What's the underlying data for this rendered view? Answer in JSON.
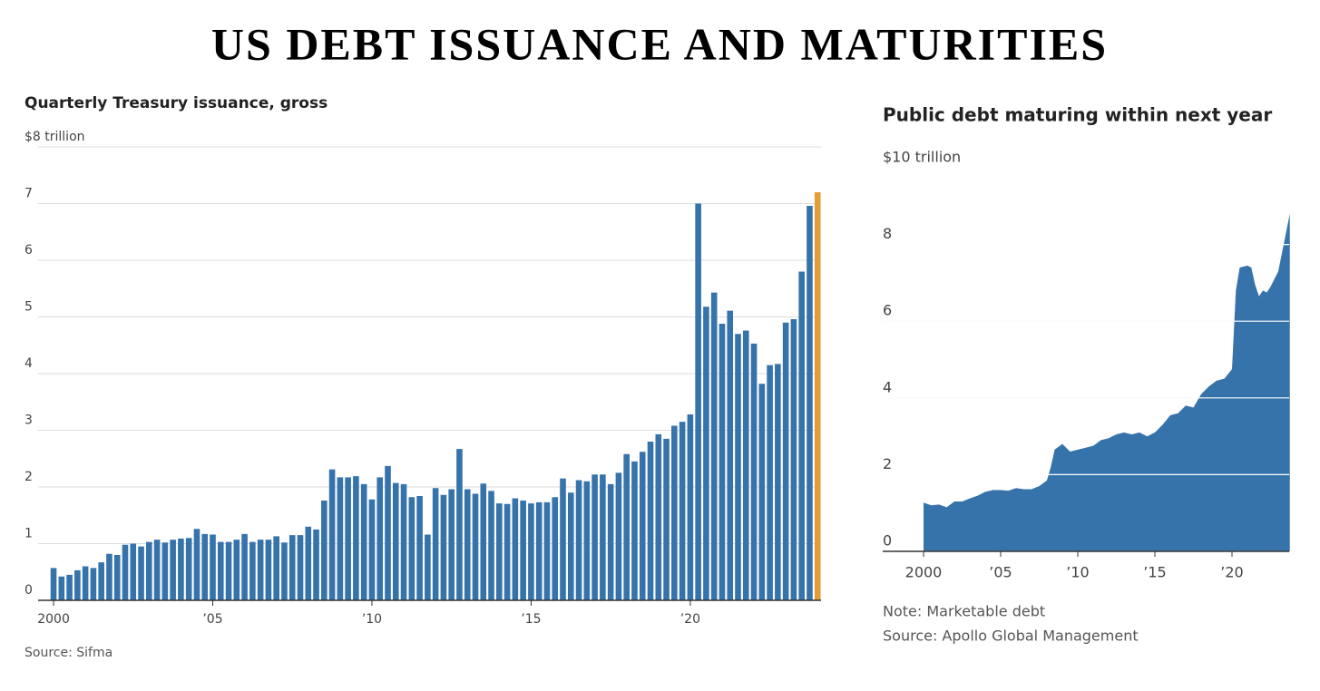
{
  "title": "US DEBT ISSUANCE AND MATURITIES",
  "chart_data": [
    {
      "type": "bar",
      "title": "Quarterly Treasury issuance, gross",
      "source": "Source: Sifma",
      "color": "#3673ab",
      "highlight_last_color": "#e49c3b",
      "x": [
        2000,
        2000.25,
        2000.5,
        2000.75,
        2001,
        2001.25,
        2001.5,
        2001.75,
        2002,
        2002.25,
        2002.5,
        2002.75,
        2003,
        2003.25,
        2003.5,
        2003.75,
        2004,
        2004.25,
        2004.5,
        2004.75,
        2005,
        2005.25,
        2005.5,
        2005.75,
        2006,
        2006.25,
        2006.5,
        2006.75,
        2007,
        2007.25,
        2007.5,
        2007.75,
        2008,
        2008.25,
        2008.5,
        2008.75,
        2009,
        2009.25,
        2009.5,
        2009.75,
        2010,
        2010.25,
        2010.5,
        2010.75,
        2011,
        2011.25,
        2011.5,
        2011.75,
        2012,
        2012.25,
        2012.5,
        2012.75,
        2013,
        2013.25,
        2013.5,
        2013.75,
        2014,
        2014.25,
        2014.5,
        2014.75,
        2015,
        2015.25,
        2015.5,
        2015.75,
        2016,
        2016.25,
        2016.5,
        2016.75,
        2017,
        2017.25,
        2017.5,
        2017.75,
        2018,
        2018.25,
        2018.5,
        2018.75,
        2019,
        2019.25,
        2019.5,
        2019.75,
        2020,
        2020.25,
        2020.5,
        2020.75,
        2021,
        2021.25,
        2021.5,
        2021.75,
        2022,
        2022.25,
        2022.5,
        2022.75,
        2023,
        2023.25,
        2023.5,
        2023.75,
        2024
      ],
      "values": [
        0.57,
        0.42,
        0.45,
        0.53,
        0.6,
        0.57,
        0.67,
        0.82,
        0.8,
        0.98,
        1.0,
        0.95,
        1.03,
        1.07,
        1.02,
        1.07,
        1.09,
        1.1,
        1.26,
        1.17,
        1.16,
        1.03,
        1.03,
        1.07,
        1.17,
        1.03,
        1.07,
        1.07,
        1.13,
        1.02,
        1.15,
        1.15,
        1.3,
        1.25,
        1.76,
        2.31,
        2.17,
        2.17,
        2.19,
        2.05,
        1.78,
        2.17,
        2.37,
        2.07,
        2.05,
        1.82,
        1.84,
        1.16,
        1.98,
        1.86,
        1.96,
        2.67,
        1.96,
        1.88,
        2.06,
        1.93,
        1.71,
        1.7,
        1.8,
        1.76,
        1.71,
        1.73,
        1.73,
        1.82,
        2.15,
        1.9,
        2.12,
        2.1,
        2.22,
        2.22,
        2.05,
        2.25,
        2.58,
        2.45,
        2.62,
        2.8,
        2.93,
        2.85,
        3.08,
        3.15,
        3.28,
        7.0,
        5.18,
        5.43,
        4.88,
        5.11,
        4.7,
        4.76,
        4.53,
        3.82,
        4.15,
        4.17,
        4.9,
        4.96,
        5.8,
        6.96,
        7.2
      ],
      "xlim": [
        1999.5,
        2024.25
      ],
      "xticks": [
        {
          "value": 2000,
          "label": "2000"
        },
        {
          "value": 2005,
          "label": "’05"
        },
        {
          "value": 2010,
          "label": "’10"
        },
        {
          "value": 2015,
          "label": "’15"
        },
        {
          "value": 2020,
          "label": "’20"
        }
      ],
      "ylim": [
        0,
        8
      ],
      "yticks": [
        0,
        1,
        2,
        3,
        4,
        5,
        6,
        7,
        {
          "value": 8,
          "label": "$8 trillion"
        }
      ],
      "grid": true
    },
    {
      "type": "area",
      "title": "Public debt maturing within next year",
      "note": "Note: Marketable debt",
      "source": "Source: Apollo Global Management",
      "color": "#3673ab",
      "x": [
        2000,
        2000.5,
        2001,
        2001.5,
        2002,
        2002.5,
        2003,
        2003.5,
        2004,
        2004.5,
        2005,
        2005.5,
        2006,
        2006.5,
        2007,
        2007.5,
        2008,
        2008.25,
        2008.5,
        2009,
        2009.5,
        2010,
        2010.5,
        2011,
        2011.5,
        2012,
        2012.5,
        2013,
        2013.5,
        2014,
        2014.5,
        2015,
        2015.5,
        2016,
        2016.5,
        2017,
        2017.5,
        2018,
        2018.5,
        2019,
        2019.5,
        2020,
        2020.25,
        2020.5,
        2021,
        2021.25,
        2021.5,
        2021.75,
        2022,
        2022.25,
        2022.5,
        2023,
        2023.4,
        2023.75
      ],
      "values": [
        1.27,
        1.2,
        1.22,
        1.15,
        1.3,
        1.3,
        1.38,
        1.45,
        1.55,
        1.6,
        1.6,
        1.58,
        1.65,
        1.62,
        1.62,
        1.7,
        1.85,
        2.2,
        2.65,
        2.8,
        2.6,
        2.65,
        2.7,
        2.75,
        2.9,
        2.95,
        3.05,
        3.1,
        3.05,
        3.1,
        3.0,
        3.1,
        3.3,
        3.55,
        3.6,
        3.8,
        3.75,
        4.1,
        4.3,
        4.45,
        4.5,
        4.75,
        6.8,
        7.4,
        7.45,
        7.4,
        6.95,
        6.65,
        6.8,
        6.75,
        6.9,
        7.3,
        8.1,
        8.8
      ],
      "xlim": [
        1997.5,
        2023.75
      ],
      "xticks": [
        {
          "value": 2000,
          "label": "2000"
        },
        {
          "value": 2005,
          "label": "’05"
        },
        {
          "value": 2010,
          "label": "’10"
        },
        {
          "value": 2015,
          "label": "’15"
        },
        {
          "value": 2020,
          "label": "’20"
        }
      ],
      "ylim": [
        0,
        10
      ],
      "yticks": [
        0,
        2,
        4,
        6,
        8,
        {
          "value": 10,
          "label": "$10 trillion"
        }
      ],
      "grid": true
    }
  ]
}
